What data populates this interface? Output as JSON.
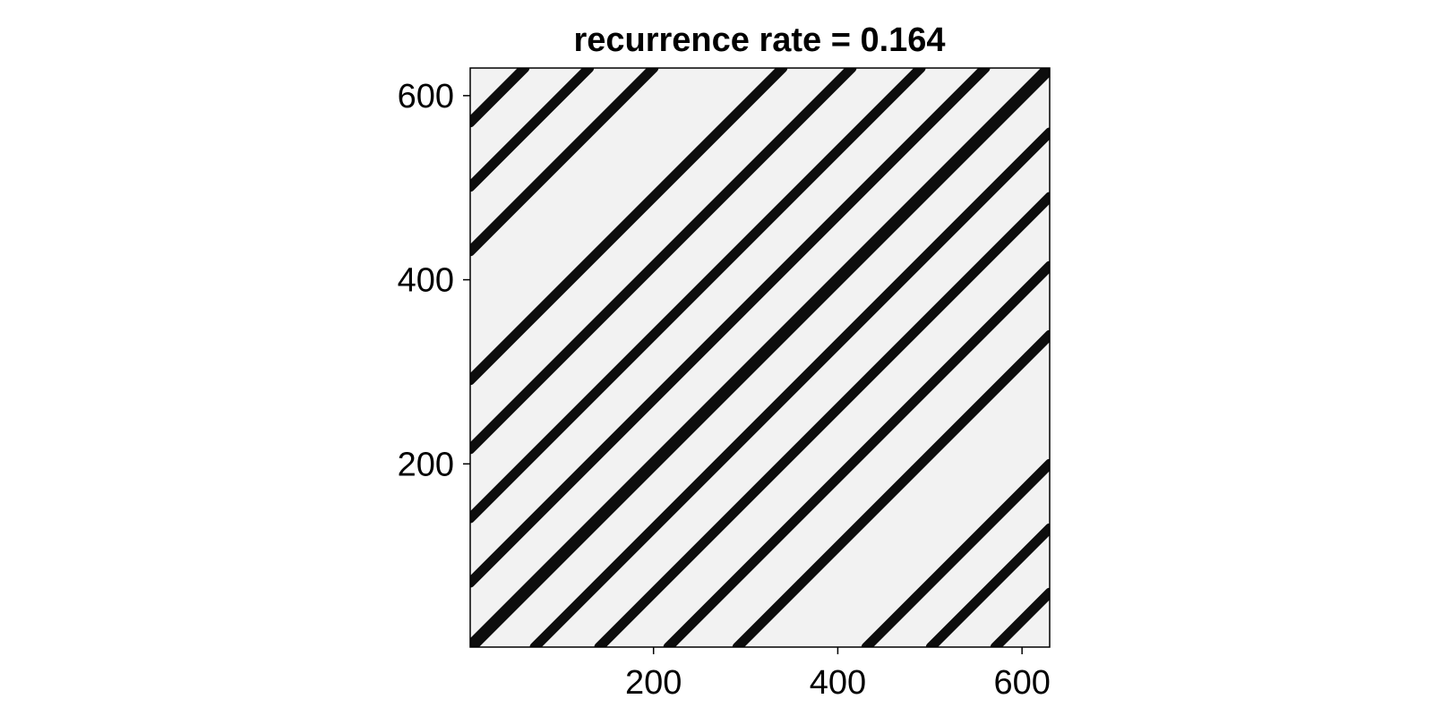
{
  "chart_data": {
    "type": "heatmap",
    "title": "recurrence rate = 0.164",
    "xlabel": "",
    "ylabel": "",
    "xlim": [
      1,
      630
    ],
    "ylim": [
      1,
      630
    ],
    "x_ticks": [
      200,
      400,
      600
    ],
    "y_ticks": [
      200,
      400,
      600
    ],
    "grid": false,
    "legend": "none",
    "colors": {
      "recurrent": "#0d0d0d",
      "background": "#f2f2f2",
      "frame": "#000000"
    },
    "recurrence_rate": 0.164,
    "diagonal_bands": [
      {
        "offset": 0,
        "x_start": 1,
        "x_end": 630
      },
      {
        "offset": 70,
        "x_start": 1,
        "x_end": 560
      },
      {
        "offset": 140,
        "x_start": 1,
        "x_end": 490
      },
      {
        "offset": 215,
        "x_start": 1,
        "x_end": 415
      },
      {
        "offset": 290,
        "x_start": 1,
        "x_end": 340
      },
      {
        "offset": 430,
        "x_start": 1,
        "x_end": 200
      },
      {
        "offset": 500,
        "x_start": 1,
        "x_end": 130
      },
      {
        "offset": 570,
        "x_start": 1,
        "x_end": 60
      },
      {
        "offset": -70,
        "x_start": 71,
        "x_end": 630
      },
      {
        "offset": -140,
        "x_start": 141,
        "x_end": 630
      },
      {
        "offset": -215,
        "x_start": 216,
        "x_end": 630
      },
      {
        "offset": -290,
        "x_start": 291,
        "x_end": 630
      },
      {
        "offset": -430,
        "x_start": 431,
        "x_end": 630
      },
      {
        "offset": -500,
        "x_start": 501,
        "x_end": 630
      },
      {
        "offset": -570,
        "x_start": 571,
        "x_end": 630
      }
    ]
  }
}
